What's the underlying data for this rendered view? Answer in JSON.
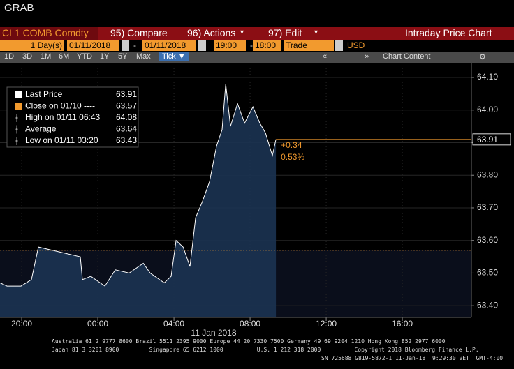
{
  "header": {
    "title": "GRAB"
  },
  "toolbar": {
    "security": "CL1 COMB Comdty",
    "compare": "95) Compare",
    "actions": "96) Actions",
    "edit": "97) Edit",
    "chart_name": "Intraday Price Chart"
  },
  "settings": {
    "period": "1 Day(s)",
    "start_date": "01/11/2018",
    "separator": "-",
    "end_date": "01/11/2018",
    "start_time": "19:00",
    "end_time": "18:00",
    "field": "Trade",
    "currency": "USD"
  },
  "ranges": [
    "1D",
    "3D",
    "1M",
    "6M",
    "YTD",
    "1Y",
    "5Y",
    "Max",
    "Tick"
  ],
  "chart_content": "Chart Content",
  "chart_data": {
    "type": "line",
    "x": [
      -5.14,
      -4.77,
      -4.04,
      -3.49,
      -3.12,
      -0.92,
      -0.81,
      -0.37,
      0.37,
      0.92,
      1.65,
      2.39,
      2.75,
      3.49,
      3.85,
      4.11,
      4.48,
      4.84,
      5.14,
      5.5,
      5.87,
      6.24,
      6.53,
      6.72,
      6.97,
      7.34,
      7.71,
      8.15,
      8.51,
      8.81,
      9.17,
      9.36
    ],
    "series": [
      {
        "color": "#ffffff",
        "fill": "#1b3352",
        "values": [
          63.47,
          63.46,
          63.46,
          63.48,
          63.58,
          63.55,
          63.48,
          63.49,
          63.46,
          63.51,
          63.5,
          63.53,
          63.5,
          63.47,
          63.49,
          63.6,
          63.58,
          63.52,
          63.67,
          63.72,
          63.78,
          63.89,
          63.94,
          64.08,
          63.95,
          64.02,
          63.96,
          64.01,
          63.96,
          63.93,
          63.86,
          63.91
        ]
      }
    ],
    "xlim": [
      -5.14,
      19.63
    ],
    "xticks": [
      {
        "value": -4,
        "label": "20:00"
      },
      {
        "value": 0,
        "label": "00:00"
      },
      {
        "value": 4,
        "label": "04:00"
      },
      {
        "value": 8,
        "label": "08:00"
      },
      {
        "value": 12,
        "label": "12:00"
      },
      {
        "value": 16,
        "label": "16:00"
      }
    ],
    "x_label": "11 Jan 2018",
    "ylim": [
      63.364,
      64.145
    ],
    "yticks": [
      {
        "value": 63.4,
        "label": "63.40"
      },
      {
        "value": 63.5,
        "label": "63.50"
      },
      {
        "value": 63.6,
        "label": "63.60"
      },
      {
        "value": 63.7,
        "label": "63.70"
      },
      {
        "value": 63.8,
        "label": "63.80"
      },
      {
        "value": 63.9,
        "label": "63.90"
      },
      {
        "value": 64.0,
        "label": "64.00"
      },
      {
        "value": 64.1,
        "label": "64.10"
      }
    ],
    "reference_lines": [
      {
        "value": 63.57,
        "color": "#f29a2e",
        "dashed": true
      },
      {
        "value": 63.91,
        "color": "#f29a2e",
        "dashed": false,
        "label": "63.91"
      }
    ],
    "annotations": [
      "+0.34",
      "0.53%"
    ],
    "legend": [
      {
        "label": "Last Price",
        "value": "63.91",
        "color": "#ffffff"
      },
      {
        "label": "Close on 01/10 ----",
        "value": "63.57",
        "color": "#f29a2e"
      },
      {
        "label": "High on 01/11 06:43",
        "value": "64.08",
        "color": "#999999"
      },
      {
        "label": "Average",
        "value": "63.64",
        "color": "#999999"
      },
      {
        "label": "Low on 01/11 03:20",
        "value": "63.43",
        "color": "#999999"
      }
    ]
  },
  "footer": {
    "line1": "Australia 61 2 9777 8600 Brazil 5511 2395 9000 Europe 44 20 7330 7500 Germany 49 69 9204 1210 Hong Kong 852 2977 6000",
    "line2": "Japan 81 3 3201 8900         Singapore 65 6212 1000          U.S. 1 212 318 2000          Copyright 2018 Bloomberg Finance L.P.",
    "line3": "SN 725688 G819-5872-1 11-Jan-18  9:29:30 VET  GMT-4:00"
  }
}
